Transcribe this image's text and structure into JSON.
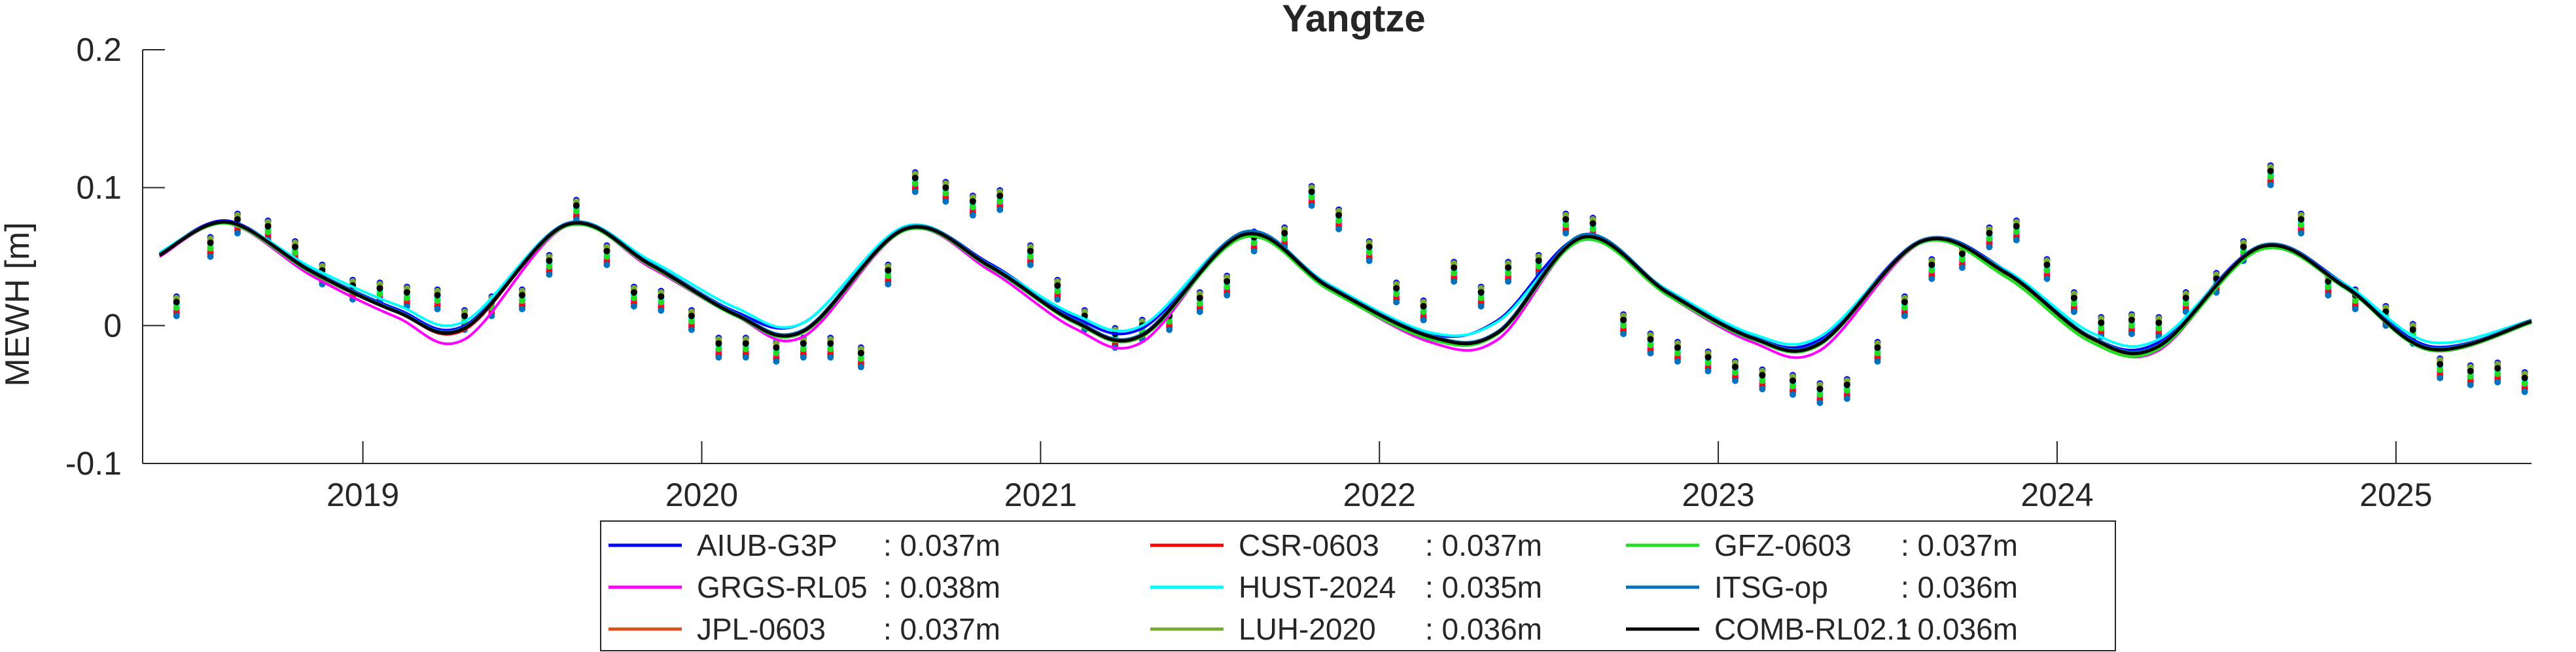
{
  "chart_data": {
    "type": "line",
    "title": "Yangtze",
    "xlabel": "",
    "ylabel": "MEWH [m]",
    "xlim": [
      2018.35,
      2025.4
    ],
    "ylim": [
      -0.1,
      0.2
    ],
    "yticks": [
      {
        "value": -0.1,
        "label": "-0.1"
      },
      {
        "value": 0,
        "label": "0"
      },
      {
        "value": 0.1,
        "label": "0.1"
      },
      {
        "value": 0.2,
        "label": "0.2"
      }
    ],
    "xticks": [
      {
        "value": 2019,
        "label": "2019"
      },
      {
        "value": 2020,
        "label": "2020"
      },
      {
        "value": 2021,
        "label": "2021"
      },
      {
        "value": 2022,
        "label": "2022"
      },
      {
        "value": 2023,
        "label": "2023"
      },
      {
        "value": 2024,
        "label": "2024"
      },
      {
        "value": 2025,
        "label": "2025"
      }
    ],
    "grid": false,
    "legend_position": "bottom-outside",
    "series_fit_x": [
      2018.4,
      2018.6,
      2018.85,
      2019.1,
      2019.3,
      2019.6,
      2019.85,
      2020.1,
      2020.3,
      2020.6,
      2020.85,
      2021.1,
      2021.3,
      2021.6,
      2021.85,
      2022.15,
      2022.35,
      2022.6,
      2022.85,
      2023.1,
      2023.3,
      2023.6,
      2023.85,
      2024.1,
      2024.3,
      2024.6,
      2024.85,
      2025.1,
      2025.4
    ],
    "series": [
      {
        "name": "AIUB-G3P",
        "rms_label": ": 0.037m",
        "color": "#0000ff",
        "y": [
          0.052,
          0.076,
          0.04,
          0.012,
          0.0,
          0.073,
          0.045,
          0.01,
          0.002,
          0.071,
          0.045,
          0.006,
          -0.002,
          0.066,
          0.03,
          -0.006,
          0.004,
          0.065,
          0.025,
          -0.008,
          -0.01,
          0.062,
          0.04,
          -0.008,
          -0.012,
          0.058,
          0.03,
          -0.015,
          0.003
        ]
      },
      {
        "name": "GRGS-RL05",
        "rms_label": ": 0.038m",
        "color": "#ff00ff",
        "y": [
          0.05,
          0.074,
          0.036,
          0.006,
          -0.01,
          0.072,
          0.042,
          0.007,
          -0.008,
          0.069,
          0.04,
          -0.002,
          -0.012,
          0.067,
          0.027,
          -0.012,
          -0.01,
          0.063,
          0.022,
          -0.012,
          -0.018,
          0.06,
          0.037,
          -0.01,
          -0.018,
          0.057,
          0.028,
          -0.018,
          0.002
        ]
      },
      {
        "name": "JPL-0603",
        "rms_label": ": 0.037m",
        "color": "#d95319",
        "y": [
          0.051,
          0.075,
          0.038,
          0.01,
          -0.003,
          0.073,
          0.044,
          0.008,
          -0.005,
          0.07,
          0.043,
          0.003,
          -0.008,
          0.067,
          0.028,
          -0.008,
          -0.005,
          0.064,
          0.024,
          -0.009,
          -0.013,
          0.062,
          0.038,
          -0.009,
          -0.015,
          0.057,
          0.028,
          -0.017,
          0.003
        ]
      },
      {
        "name": "CSR-0603",
        "rms_label": ": 0.037m",
        "color": "#ff0000",
        "y": [
          0.051,
          0.075,
          0.038,
          0.01,
          -0.003,
          0.073,
          0.044,
          0.008,
          -0.005,
          0.07,
          0.043,
          0.003,
          -0.008,
          0.067,
          0.028,
          -0.008,
          -0.005,
          0.064,
          0.024,
          -0.009,
          -0.013,
          0.061,
          0.038,
          -0.009,
          -0.015,
          0.057,
          0.028,
          -0.017,
          0.003
        ]
      },
      {
        "name": "HUST-2024",
        "rms_label": ": 0.035m",
        "color": "#00ffff",
        "y": [
          0.053,
          0.075,
          0.042,
          0.015,
          0.003,
          0.074,
          0.047,
          0.013,
          0.002,
          0.072,
          0.044,
          0.008,
          0.0,
          0.067,
          0.03,
          -0.005,
          0.003,
          0.062,
          0.026,
          -0.006,
          -0.008,
          0.06,
          0.04,
          -0.005,
          -0.01,
          0.056,
          0.03,
          -0.012,
          0.004
        ]
      },
      {
        "name": "LUH-2020",
        "rms_label": ": 0.036m",
        "color": "#77ac30",
        "y": [
          0.051,
          0.075,
          0.039,
          0.01,
          -0.002,
          0.073,
          0.044,
          0.008,
          -0.004,
          0.07,
          0.043,
          0.003,
          -0.007,
          0.065,
          0.028,
          -0.008,
          -0.005,
          0.063,
          0.024,
          -0.009,
          -0.013,
          0.061,
          0.037,
          -0.01,
          -0.016,
          0.056,
          0.028,
          -0.017,
          0.003
        ]
      },
      {
        "name": "GFZ-0603",
        "rms_label": ": 0.037m",
        "color": "#22dd22",
        "y": [
          0.051,
          0.074,
          0.038,
          0.01,
          -0.002,
          0.072,
          0.043,
          0.007,
          -0.005,
          0.069,
          0.042,
          0.002,
          -0.008,
          0.064,
          0.026,
          -0.01,
          -0.006,
          0.062,
          0.022,
          -0.01,
          -0.014,
          0.06,
          0.035,
          -0.012,
          -0.017,
          0.055,
          0.027,
          -0.018,
          0.002
        ]
      },
      {
        "name": "ITSG-op",
        "rms_label": ": 0.036m",
        "color": "#0072bd",
        "y": [
          0.052,
          0.075,
          0.04,
          0.011,
          -0.001,
          0.074,
          0.045,
          0.009,
          -0.003,
          0.071,
          0.044,
          0.004,
          -0.006,
          0.068,
          0.029,
          -0.007,
          -0.004,
          0.066,
          0.025,
          -0.008,
          -0.012,
          0.062,
          0.039,
          -0.008,
          -0.014,
          0.058,
          0.029,
          -0.016,
          0.004
        ]
      },
      {
        "name": "COMB-RL02.1",
        "rms_label": ": 0.036m",
        "color": "#000000",
        "y": [
          0.051,
          0.075,
          0.039,
          0.01,
          -0.002,
          0.073,
          0.044,
          0.008,
          -0.004,
          0.07,
          0.043,
          0.003,
          -0.007,
          0.066,
          0.028,
          -0.008,
          -0.005,
          0.064,
          0.024,
          -0.009,
          -0.013,
          0.061,
          0.038,
          -0.009,
          -0.015,
          0.057,
          0.028,
          -0.017,
          0.003
        ]
      }
    ],
    "monthly_x": [
      2018.45,
      2018.55,
      2018.63,
      2018.72,
      2018.8,
      2018.88,
      2018.97,
      2019.05,
      2019.13,
      2019.22,
      2019.3,
      2019.38,
      2019.47,
      2019.55,
      2019.63,
      2019.72,
      2019.8,
      2019.88,
      2019.97,
      2020.05,
      2020.13,
      2020.22,
      2020.3,
      2020.38,
      2020.47,
      2020.55,
      2020.63,
      2020.72,
      2020.8,
      2020.88,
      2020.97,
      2021.05,
      2021.13,
      2021.22,
      2021.3,
      2021.38,
      2021.47,
      2021.55,
      2021.63,
      2021.72,
      2021.8,
      2021.88,
      2021.97,
      2022.05,
      2022.13,
      2022.22,
      2022.3,
      2022.38,
      2022.47,
      2022.55,
      2022.63,
      2022.72,
      2022.8,
      2022.88,
      2022.97,
      2023.05,
      2023.13,
      2023.22,
      2023.3,
      2023.38,
      2023.47,
      2023.55,
      2023.63,
      2023.72,
      2023.8,
      2023.88,
      2023.97,
      2024.05,
      2024.13,
      2024.22,
      2024.3,
      2024.38,
      2024.47,
      2024.55,
      2024.63,
      2024.72,
      2024.8,
      2024.88,
      2024.97,
      2025.05,
      2025.13,
      2025.22,
      2025.3,
      2025.38
    ],
    "monthly_y": [
      0.015,
      0.058,
      0.075,
      0.07,
      0.055,
      0.038,
      0.027,
      0.025,
      0.022,
      0.02,
      0.005,
      0.015,
      0.02,
      0.045,
      0.085,
      0.052,
      0.022,
      0.019,
      0.005,
      -0.015,
      -0.015,
      -0.018,
      -0.015,
      -0.015,
      -0.022,
      0.038,
      0.105,
      0.098,
      0.088,
      0.092,
      0.052,
      0.027,
      0.005,
      -0.008,
      -0.002,
      0.005,
      0.018,
      0.03,
      0.062,
      0.065,
      0.095,
      0.078,
      0.055,
      0.025,
      0.012,
      0.04,
      0.022,
      0.04,
      0.045,
      0.075,
      0.072,
      0.002,
      -0.012,
      -0.018,
      -0.025,
      -0.032,
      -0.038,
      -0.042,
      -0.048,
      -0.045,
      -0.018,
      0.015,
      0.042,
      0.05,
      0.065,
      0.07,
      0.042,
      0.018,
      0.0,
      0.002,
      0.0,
      0.018,
      0.032,
      0.055,
      0.11,
      0.075,
      0.03,
      0.02,
      0.008,
      -0.005,
      -0.03,
      -0.035,
      -0.033,
      -0.04
    ]
  }
}
